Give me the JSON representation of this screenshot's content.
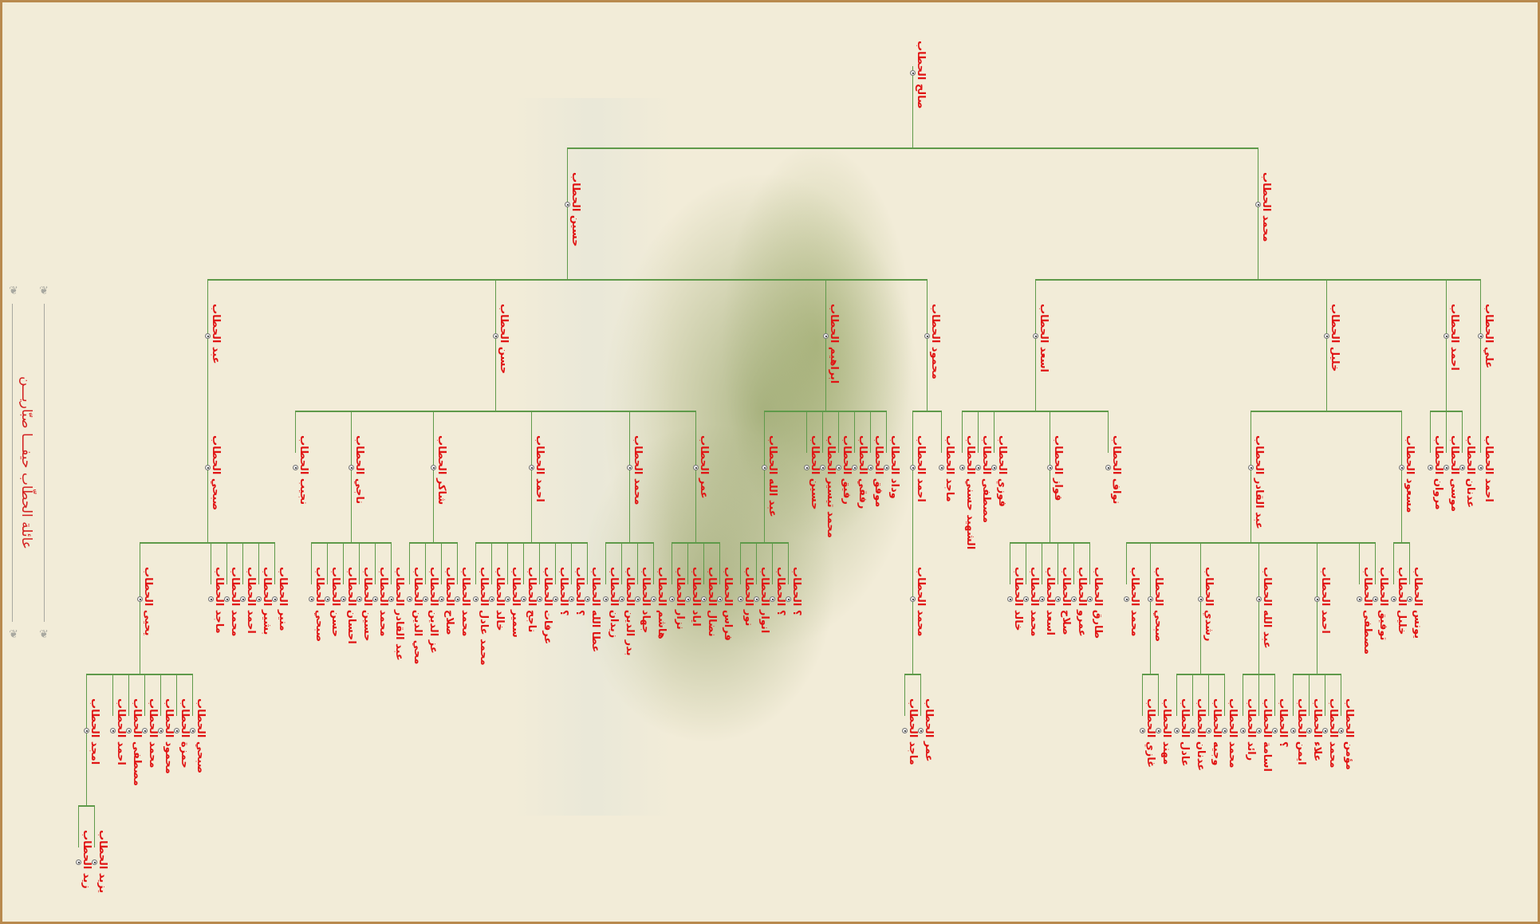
{
  "title": "عائلة الحطّاب  حيفـــا  صبّاريـــن",
  "colors": {
    "name_text": "#e01414",
    "connector": "#5f9a4a",
    "border": "#b98a4e",
    "background": "#f2ecd8"
  },
  "tree": {
    "name": "صالح الحطاب",
    "children": [
      {
        "name": "حسين الحطاب",
        "children": [
          {
            "name": "عبد الحطاب",
            "children": [
              {
                "name": "صبحي الحطاب",
                "children": [
                  {
                    "name": "يحيى الحطاب",
                    "children": [
                      {
                        "name": "امجد الحطاب",
                        "children": [
                          {
                            "name": "زيد الحطاب"
                          },
                          {
                            "name": "يزيد الحطاب"
                          }
                        ]
                      },
                      {
                        "name": "احمد الحطاب"
                      },
                      {
                        "name": "مصطفى الحطاب"
                      },
                      {
                        "name": "محمد الحطاب"
                      },
                      {
                        "name": "محمود الحطاب"
                      },
                      {
                        "name": "حمزة الحطاب"
                      },
                      {
                        "name": "صبحي الحطاب"
                      }
                    ]
                  },
                  {
                    "name": "ماجد الحطاب"
                  },
                  {
                    "name": "محمد الحطاب"
                  },
                  {
                    "name": "احمد الحطاب"
                  },
                  {
                    "name": "بشير الحطاب"
                  },
                  {
                    "name": "منير الحطاب"
                  }
                ]
              }
            ]
          },
          {
            "name": "حسن الحطاب",
            "children": [
              {
                "name": "نجيب الحطاب"
              },
              {
                "name": "ناجي الحطاب",
                "children": [
                  {
                    "name": "صبحي الحطاب"
                  },
                  {
                    "name": "حسن الحطاب"
                  },
                  {
                    "name": "احسان الحطاب"
                  },
                  {
                    "name": "حسين الحطاب"
                  },
                  {
                    "name": "محمد الحطاب"
                  },
                  {
                    "name": "عبد القادر الحطاب"
                  }
                ]
              },
              {
                "name": "شاكر الحطاب",
                "children": [
                  {
                    "name": "محي الدين الحطاب"
                  },
                  {
                    "name": "عز الدين الحطاب"
                  },
                  {
                    "name": "صلاح الحطاب"
                  },
                  {
                    "name": "محمد الحطاب"
                  }
                ]
              },
              {
                "name": "احمد الحطاب",
                "children": [
                  {
                    "name": "محمد عادل الحطاب"
                  },
                  {
                    "name": "خالد الحطاب"
                  },
                  {
                    "name": "سمير الحطاب"
                  },
                  {
                    "name": "ناجح الحطاب"
                  },
                  {
                    "name": "عرفات الحطاب"
                  },
                  {
                    "name": "؟ الحطاب"
                  },
                  {
                    "name": "؟ الحطاب"
                  },
                  {
                    "name": "عطا الله الحطاب"
                  }
                ]
              },
              {
                "name": "محمد الحطاب",
                "children": [
                  {
                    "name": "زيدان الحطاب"
                  },
                  {
                    "name": "بدر الدين الحطاب"
                  },
                  {
                    "name": "جهاد الحطاب"
                  },
                  {
                    "name": "هاشم الحطاب"
                  }
                ]
              },
              {
                "name": "عمر الحطاب",
                "children": [
                  {
                    "name": "نزار الحطاب"
                  },
                  {
                    "name": "اياد الحطاب"
                  },
                  {
                    "name": "نضال الحطاب"
                  },
                  {
                    "name": "فراس الحطاب"
                  }
                ]
              }
            ]
          },
          {
            "name": "ابراهيم الحطاب",
            "children": [
              {
                "name": "عبد الله الحطاب",
                "children": [
                  {
                    "name": "نور الحطاب"
                  },
                  {
                    "name": "انوار الحطاب"
                  },
                  {
                    "name": "؟ الحطاب"
                  },
                  {
                    "name": "؟ الحطاب"
                  }
                ]
              },
              {
                "name": "حسين الحطاب"
              },
              {
                "name": "محمد تيسير الحطاب"
              },
              {
                "name": "رفيق الحطاب"
              },
              {
                "name": "رفقي الحطاب"
              },
              {
                "name": "موفق الحطاب"
              },
              {
                "name": "وداد الحطاب"
              }
            ]
          },
          {
            "name": "محمود الحطاب",
            "children": [
              {
                "name": "احمد الحطاب",
                "children": [
                  {
                    "name": "محمد الحطاب",
                    "children": [
                      {
                        "name": "ماجد الحطاب"
                      },
                      {
                        "name": "عمر الحطاب"
                      }
                    ]
                  }
                ]
              },
              {
                "name": "ماجد الحطاب"
              }
            ]
          }
        ]
      },
      {
        "name": "محمد الحطاب",
        "children": [
          {
            "name": "اسعد الحطاب",
            "children": [
              {
                "name": "الشهيد حسني الحطاب"
              },
              {
                "name": "مصطفى الحطاب"
              },
              {
                "name": "فوزي الحطاب"
              },
              {
                "name": "فواز الحطاب",
                "children": [
                  {
                    "name": "خالد الحطاب"
                  },
                  {
                    "name": "محمد الحطاب"
                  },
                  {
                    "name": "اسعد الحطاب"
                  },
                  {
                    "name": "صلاح الحطاب"
                  },
                  {
                    "name": "عمرو الحطاب"
                  },
                  {
                    "name": "طارق الحطاب"
                  }
                ]
              },
              {
                "name": "نواف الحطاب"
              }
            ]
          },
          {
            "name": "خليل الحطاب",
            "children": [
              {
                "name": "عبد القادر الحطاب",
                "children": [
                  {
                    "name": "محمد الحطاب"
                  },
                  {
                    "name": "صبحي الحطاب",
                    "children": [
                      {
                        "name": "غازي الحطاب"
                      },
                      {
                        "name": "مهند الحطاب"
                      }
                    ]
                  },
                  {
                    "name": "رشدي الحطاب",
                    "children": [
                      {
                        "name": "عادل الحطاب"
                      },
                      {
                        "name": "عدنان الحطاب"
                      },
                      {
                        "name": "وجيه الحطاب"
                      },
                      {
                        "name": "محمد الحطاب"
                      }
                    ]
                  },
                  {
                    "name": "عبد الله الحطاب",
                    "children": [
                      {
                        "name": "رائد الحطاب"
                      },
                      {
                        "name": "اسامة الحطاب"
                      },
                      {
                        "name": "؟ الحطاب"
                      }
                    ]
                  },
                  {
                    "name": "احمد الحطاب",
                    "children": [
                      {
                        "name": "ايمن الحطاب"
                      },
                      {
                        "name": "علاء الحطاب"
                      },
                      {
                        "name": "محمد الحطاب"
                      },
                      {
                        "name": "مؤمن الحطاب"
                      }
                    ]
                  },
                  {
                    "name": "مصطفى الحطاب"
                  },
                  {
                    "name": "توفيق الحطاب"
                  }
                ]
              },
              {
                "name": "مسعود الحطاب",
                "children": [
                  {
                    "name": "خليل الحطاب"
                  },
                  {
                    "name": "يونس الحطاب"
                  }
                ]
              }
            ]
          },
          {
            "name": "احمد الحطاب",
            "children": [
              {
                "name": "مروان الحطاب"
              },
              {
                "name": "موسى الحطاب"
              },
              {
                "name": "عدنان الحطاب"
              }
            ]
          },
          {
            "name": "علي الحطاب",
            "children": [
              {
                "name": "احمد الحطاب"
              }
            ]
          }
        ]
      }
    ]
  }
}
